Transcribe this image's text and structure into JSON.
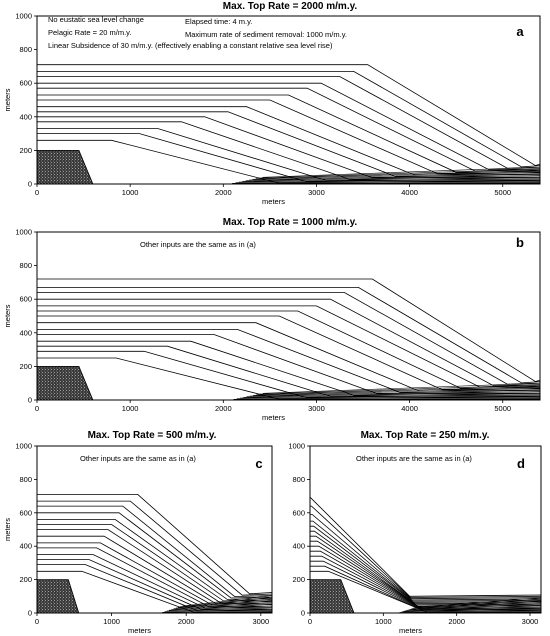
{
  "chart_data": [
    {
      "type": "line",
      "label": "a",
      "title": "Max. Top Rate = 2000 m/m.y.",
      "xlabel": "meters",
      "ylabel": "meters",
      "xlim": [
        0,
        5400
      ],
      "ylim": [
        0,
        1000
      ],
      "xticks": [
        0,
        1000,
        2000,
        3000,
        4000,
        5000
      ],
      "yticks": [
        0,
        200,
        400,
        600,
        800,
        1000
      ],
      "annotations": [
        "No eustatic sea level change",
        "Pelagic Rate = 20 m/m.y.",
        "Linear Subsidence of 30 m/m.y. (effectively enabling a constant relative sea level rise)",
        "Elapsed time: 4 m.y.",
        "Maximum rate of sediment removal:  1000 m/m.y."
      ],
      "basement": {
        "top": 200,
        "shelf_edge_x": 450,
        "toe_x": 600
      },
      "timelines": {
        "count": 14,
        "top_depth": [
          260,
          300,
          330,
          370,
          400,
          430,
          460,
          500,
          530,
          570,
          600,
          640,
          670,
          710
        ],
        "shelf_edge_x": [
          800,
          1100,
          1300,
          1550,
          1800,
          2050,
          2250,
          2500,
          2700,
          2900,
          3050,
          3250,
          3400,
          3550
        ],
        "toe_depth_first": 5,
        "toe_depth_last": 110,
        "slope_width": 1800
      }
    },
    {
      "type": "line",
      "label": "b",
      "title": "Max. Top Rate = 1000 m/m.y.",
      "xlabel": "meters",
      "ylabel": "meters",
      "xlim": [
        0,
        5400
      ],
      "ylim": [
        0,
        1000
      ],
      "xticks": [
        0,
        1000,
        2000,
        3000,
        4000,
        5000
      ],
      "yticks": [
        0,
        200,
        400,
        600,
        800,
        1000
      ],
      "annotations": [
        "Other inputs are the same as in (a)"
      ],
      "basement": {
        "top": 200,
        "shelf_edge_x": 450,
        "toe_x": 600
      },
      "timelines": {
        "count": 14,
        "top_depth": [
          250,
          290,
          320,
          350,
          390,
          420,
          460,
          500,
          530,
          560,
          600,
          640,
          670,
          720
        ],
        "shelf_edge_x": [
          850,
          1150,
          1400,
          1650,
          1900,
          2150,
          2350,
          2600,
          2800,
          3000,
          3150,
          3300,
          3450,
          3600
        ],
        "toe_depth_first": 5,
        "toe_depth_last": 110,
        "slope_width": 1750
      }
    },
    {
      "type": "line",
      "label": "c",
      "title": "Max. Top Rate = 500 m/m.y.",
      "xlabel": "meters",
      "ylabel": "meters",
      "xlim": [
        0,
        3150
      ],
      "ylim": [
        0,
        1000
      ],
      "xticks": [
        0,
        1000,
        2000,
        3000
      ],
      "yticks": [
        0,
        200,
        400,
        600,
        800,
        1000
      ],
      "annotations": [
        "Other inputs are the same as in (a)"
      ],
      "basement": {
        "top": 200,
        "shelf_edge_x": 420,
        "toe_x": 560
      },
      "timelines": {
        "count": 14,
        "top_depth": [
          250,
          290,
          320,
          350,
          390,
          420,
          460,
          500,
          530,
          560,
          600,
          640,
          670,
          710
        ],
        "shelf_edge_x": [
          600,
          650,
          700,
          750,
          800,
          850,
          900,
          950,
          1000,
          1050,
          1100,
          1150,
          1250,
          1350
        ],
        "toe_depth_first": 5,
        "toe_depth_last": 115,
        "slope_width": 1500
      }
    },
    {
      "type": "line",
      "label": "d",
      "title": "Max. Top Rate = 250 m/m.y.",
      "xlabel": "meters",
      "ylabel": "",
      "xlim": [
        0,
        3150
      ],
      "ylim": [
        0,
        1000
      ],
      "xticks": [
        0,
        1000,
        2000,
        3000
      ],
      "yticks": [
        0,
        200,
        400,
        600,
        800,
        1000
      ],
      "annotations": [
        "Other inputs are the same as in (a)"
      ],
      "basement": {
        "top": 200,
        "shelf_edge_x": 420,
        "toe_x": 600
      },
      "timelines": {
        "count": 14,
        "top_depth": [
          250,
          280,
          310,
          340,
          370,
          400,
          430,
          460,
          490,
          520,
          550,
          590,
          640,
          690
        ],
        "shelf_edge_x": [
          250,
          200,
          180,
          160,
          140,
          120,
          100,
          80,
          60,
          50,
          40,
          30,
          20,
          10
        ],
        "toe_depth_first": 5,
        "toe_depth_last": 100,
        "slope_width": 1350
      }
    }
  ]
}
